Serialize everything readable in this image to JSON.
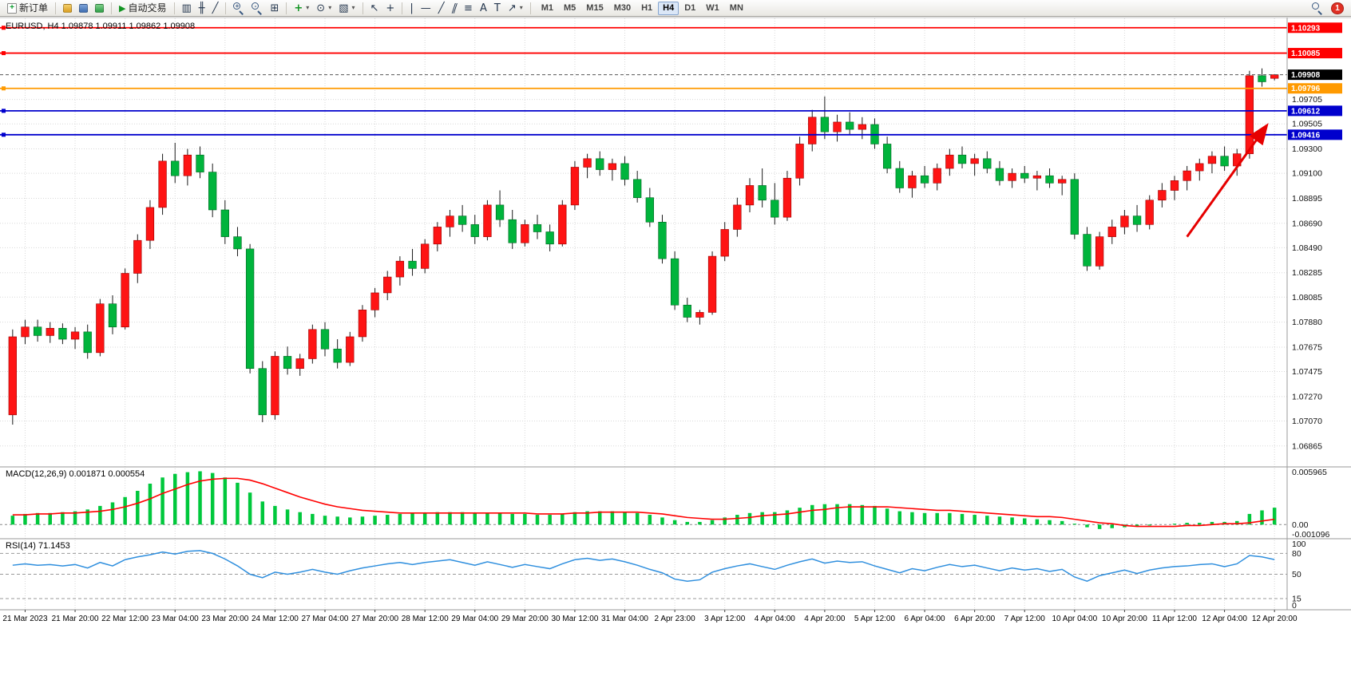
{
  "toolbar": {
    "new_order_label": "新订单",
    "auto_trading_label": "自动交易",
    "timeframes": [
      "M1",
      "M5",
      "M15",
      "M30",
      "H1",
      "H4",
      "D1",
      "W1",
      "MN"
    ],
    "active_timeframe": "H4",
    "notification_badge": "1"
  },
  "icons": {
    "new_order": "+",
    "auto_trading": "▶",
    "bar_chart": "▥",
    "candle_chart": "╫",
    "line_chart": "╱",
    "zoom_in": "+",
    "zoom_out": "-",
    "tile_windows": "⊞",
    "indicators": "+",
    "periods": "⊙",
    "templates": "▧",
    "caret": "▾",
    "cursor": "↖",
    "crosshair": "+",
    "vertical_line": "|",
    "horizontal_line": "—",
    "trendline": "╱",
    "channel": "∥",
    "fibonacci": "≡",
    "text": "A",
    "text_label": "T",
    "arrows": "↗"
  },
  "chart": {
    "title": "EURUSD, H4  1.09878 1.09911 1.09862 1.09908"
  },
  "chart_data": {
    "type": "candlestick",
    "symbol": "EURUSD",
    "timeframe": "H4",
    "ohlc": {
      "open": "1.09878",
      "high": "1.09911",
      "low": "1.09862",
      "close": "1.09908"
    },
    "colors": {
      "up": "#fe1414",
      "up_edge": "#990000",
      "down": "#00b43c",
      "down_edge": "#006622",
      "wick": "#1a1a1a",
      "macd_hist": "#00c83c",
      "macd_signal": "#ff0000",
      "rsi_line": "#2f8fde",
      "grid": "#d8d8d8"
    },
    "price_axis": {
      "min": 1.067,
      "max": 1.1037,
      "ticks": [
        "1.09705",
        "1.09505",
        "1.09300",
        "1.09100",
        "1.08895",
        "1.08690",
        "1.08490",
        "1.08285",
        "1.08085",
        "1.07880",
        "1.07675",
        "1.07475",
        "1.07270",
        "1.07070",
        "1.06865"
      ]
    },
    "current_price": {
      "label": "1.09908",
      "value": 1.09908,
      "tag_bg": "#000000",
      "line_color": "#555555"
    },
    "h_lines": [
      {
        "label": "1.10293",
        "value": 1.10293,
        "color": "#ff0000"
      },
      {
        "label": "1.10085",
        "value": 1.10085,
        "color": "#ff0000"
      },
      {
        "label": "1.09796",
        "value": 1.09796,
        "color": "#ff9a00"
      },
      {
        "label": "1.09612",
        "value": 1.09612,
        "color": "#0000cd"
      },
      {
        "label": "1.09416",
        "value": 1.09416,
        "color": "#0000cd"
      }
    ],
    "time_labels": [
      "21 Mar 2023",
      "21 Mar 20:00",
      "22 Mar 12:00",
      "23 Mar 04:00",
      "23 Mar 20:00",
      "24 Mar 12:00",
      "27 Mar 04:00",
      "27 Mar 20:00",
      "28 Mar 12:00",
      "29 Mar 04:00",
      "29 Mar 20:00",
      "30 Mar 12:00",
      "31 Mar 04:00",
      "2 Apr 23:00",
      "3 Apr 12:00",
      "4 Apr 04:00",
      "4 Apr 20:00",
      "5 Apr 12:00",
      "6 Apr 04:00",
      "6 Apr 20:00",
      "7 Apr 12:00",
      "10 Apr 04:00",
      "10 Apr 20:00",
      "11 Apr 12:00",
      "12 Apr 04:00",
      "12 Apr 20:00"
    ],
    "candles": [
      [
        1.0712,
        1.0782,
        1.0704,
        1.0776
      ],
      [
        1.0776,
        1.079,
        1.077,
        1.0784
      ],
      [
        1.0784,
        1.079,
        1.0772,
        1.0777
      ],
      [
        1.0777,
        1.0788,
        1.0771,
        1.0783
      ],
      [
        1.0783,
        1.0787,
        1.077,
        1.0774
      ],
      [
        1.0774,
        1.0784,
        1.0766,
        1.078
      ],
      [
        1.078,
        1.0786,
        1.0758,
        1.0763
      ],
      [
        1.0763,
        1.0807,
        1.076,
        1.0803
      ],
      [
        1.0803,
        1.081,
        1.0778,
        1.0784
      ],
      [
        1.0784,
        1.0832,
        1.0782,
        1.0828
      ],
      [
        1.0828,
        1.086,
        1.082,
        1.0855
      ],
      [
        1.0855,
        1.0888,
        1.0848,
        1.0882
      ],
      [
        1.0882,
        1.0926,
        1.0876,
        1.092
      ],
      [
        1.092,
        1.0935,
        1.0902,
        1.0908
      ],
      [
        1.0908,
        1.093,
        1.09,
        1.0925
      ],
      [
        1.0925,
        1.0932,
        1.0906,
        1.0911
      ],
      [
        1.0911,
        1.0918,
        1.0874,
        1.088
      ],
      [
        1.088,
        1.0888,
        1.0852,
        1.0858
      ],
      [
        1.0858,
        1.0866,
        1.0842,
        1.0848
      ],
      [
        1.0848,
        1.0852,
        1.0746,
        1.075
      ],
      [
        1.075,
        1.0756,
        1.0706,
        1.0712
      ],
      [
        1.0712,
        1.0764,
        1.0708,
        1.076
      ],
      [
        1.076,
        1.0768,
        1.0745,
        1.075
      ],
      [
        1.075,
        1.0762,
        1.0744,
        1.0758
      ],
      [
        1.0758,
        1.0786,
        1.0754,
        1.0782
      ],
      [
        1.0782,
        1.0788,
        1.076,
        1.0766
      ],
      [
        1.0766,
        1.0774,
        1.075,
        1.0755
      ],
      [
        1.0755,
        1.078,
        1.0752,
        1.0776
      ],
      [
        1.0776,
        1.0802,
        1.0772,
        1.0798
      ],
      [
        1.0798,
        1.0816,
        1.0792,
        1.0812
      ],
      [
        1.0812,
        1.083,
        1.0806,
        1.0825
      ],
      [
        1.0825,
        1.0842,
        1.0818,
        1.0838
      ],
      [
        1.0838,
        1.0848,
        1.0826,
        1.0832
      ],
      [
        1.0832,
        1.0856,
        1.0828,
        1.0852
      ],
      [
        1.0852,
        1.087,
        1.0846,
        1.0866
      ],
      [
        1.0866,
        1.088,
        1.0858,
        1.0875
      ],
      [
        1.0875,
        1.0884,
        1.0862,
        1.0868
      ],
      [
        1.0868,
        1.0876,
        1.0852,
        1.0858
      ],
      [
        1.0858,
        1.0888,
        1.0855,
        1.0884
      ],
      [
        1.0884,
        1.0896,
        1.0866,
        1.0872
      ],
      [
        1.0872,
        1.088,
        1.0848,
        1.0853
      ],
      [
        1.0853,
        1.0872,
        1.085,
        1.0868
      ],
      [
        1.0868,
        1.0876,
        1.0856,
        1.0862
      ],
      [
        1.0862,
        1.0868,
        1.0846,
        1.0852
      ],
      [
        1.0852,
        1.0888,
        1.085,
        1.0884
      ],
      [
        1.0884,
        1.092,
        1.088,
        1.0915
      ],
      [
        1.0915,
        1.0926,
        1.0906,
        1.0922
      ],
      [
        1.0922,
        1.0928,
        1.0908,
        1.0913
      ],
      [
        1.0913,
        1.0922,
        1.0904,
        1.0918
      ],
      [
        1.0918,
        1.0924,
        1.09,
        1.0905
      ],
      [
        1.0905,
        1.0912,
        1.0886,
        1.089
      ],
      [
        1.089,
        1.0898,
        1.0866,
        1.087
      ],
      [
        1.087,
        1.0876,
        1.0836,
        1.084
      ],
      [
        1.084,
        1.0846,
        1.0798,
        1.0802
      ],
      [
        1.0802,
        1.0808,
        1.0788,
        1.0792
      ],
      [
        1.0792,
        1.0798,
        1.0786,
        1.0796
      ],
      [
        1.0796,
        1.0846,
        1.0794,
        1.0842
      ],
      [
        1.0842,
        1.087,
        1.0838,
        1.0864
      ],
      [
        1.0864,
        1.089,
        1.0858,
        1.0884
      ],
      [
        1.0884,
        1.0906,
        1.0878,
        1.09
      ],
      [
        1.09,
        1.0914,
        1.0882,
        1.0888
      ],
      [
        1.0888,
        1.0902,
        1.0868,
        1.0874
      ],
      [
        1.0874,
        1.0912,
        1.0871,
        1.0906
      ],
      [
        1.0906,
        1.094,
        1.09,
        1.0934
      ],
      [
        1.0934,
        1.0962,
        1.0928,
        1.0956
      ],
      [
        1.0956,
        1.0973,
        1.0938,
        1.0944
      ],
      [
        1.0944,
        1.0958,
        1.0936,
        1.0952
      ],
      [
        1.0952,
        1.096,
        1.0942,
        1.0946
      ],
      [
        1.0946,
        1.0956,
        1.0938,
        1.095
      ],
      [
        1.095,
        1.0955,
        1.093,
        1.0934
      ],
      [
        1.0934,
        1.094,
        1.091,
        1.0914
      ],
      [
        1.0914,
        1.092,
        1.0894,
        1.0898
      ],
      [
        1.0898,
        1.0912,
        1.089,
        1.0908
      ],
      [
        1.0908,
        1.0916,
        1.0898,
        1.0902
      ],
      [
        1.0902,
        1.0918,
        1.0896,
        1.0914
      ],
      [
        1.0914,
        1.093,
        1.0908,
        1.0925
      ],
      [
        1.0925,
        1.0932,
        1.0914,
        1.0918
      ],
      [
        1.0918,
        1.0926,
        1.0908,
        1.0922
      ],
      [
        1.0922,
        1.0928,
        1.091,
        1.0914
      ],
      [
        1.0914,
        1.092,
        1.09,
        1.0904
      ],
      [
        1.0904,
        1.0914,
        1.0898,
        1.091
      ],
      [
        1.091,
        1.0916,
        1.0902,
        1.0906
      ],
      [
        1.0906,
        1.0912,
        1.0896,
        1.0908
      ],
      [
        1.0908,
        1.0914,
        1.0898,
        1.0902
      ],
      [
        1.0902,
        1.0908,
        1.0892,
        1.0905
      ],
      [
        1.0905,
        1.091,
        1.0856,
        1.086
      ],
      [
        1.086,
        1.0866,
        1.083,
        1.0834
      ],
      [
        1.0834,
        1.0862,
        1.0831,
        1.0858
      ],
      [
        1.0858,
        1.0872,
        1.0852,
        1.0866
      ],
      [
        1.0866,
        1.088,
        1.086,
        1.0875
      ],
      [
        1.0875,
        1.0884,
        1.0862,
        1.0868
      ],
      [
        1.0868,
        1.0892,
        1.0864,
        1.0888
      ],
      [
        1.0888,
        1.0902,
        1.0882,
        1.0896
      ],
      [
        1.0896,
        1.0908,
        1.0888,
        1.0904
      ],
      [
        1.0904,
        1.0916,
        1.0896,
        1.0912
      ],
      [
        1.0912,
        1.0922,
        1.0904,
        1.0918
      ],
      [
        1.0918,
        1.0928,
        1.091,
        1.0924
      ],
      [
        1.0924,
        1.0932,
        1.0912,
        1.0916
      ],
      [
        1.0916,
        1.093,
        1.0908,
        1.0926
      ],
      [
        1.0926,
        1.0994,
        1.0922,
        1.099
      ],
      [
        1.099,
        1.0996,
        1.0981,
        1.0985
      ],
      [
        1.09878,
        1.09911,
        1.09862,
        1.09908
      ]
    ],
    "macd": {
      "label": "MACD(12,26,9) 0.001871 0.000554",
      "scale": {
        "max_label": "0.005965",
        "zero_label": "0.00",
        "min_label": "-0.001096",
        "max": 0.0064,
        "min": -0.0015
      },
      "histogram": [
        0.001,
        0.0012,
        0.0013,
        0.0013,
        0.0014,
        0.0015,
        0.0017,
        0.0021,
        0.0025,
        0.0031,
        0.0038,
        0.0046,
        0.0053,
        0.0057,
        0.0059,
        0.006,
        0.0058,
        0.0053,
        0.0047,
        0.0036,
        0.0026,
        0.0021,
        0.0017,
        0.0014,
        0.0012,
        0.001,
        0.0009,
        0.0008,
        0.0009,
        0.001,
        0.0011,
        0.0012,
        0.0013,
        0.0013,
        0.0014,
        0.0014,
        0.0014,
        0.0013,
        0.0013,
        0.0013,
        0.0012,
        0.0012,
        0.0011,
        0.0011,
        0.0012,
        0.0014,
        0.0015,
        0.0015,
        0.0015,
        0.0014,
        0.0013,
        0.0011,
        0.0008,
        0.0005,
        0.0003,
        0.0003,
        0.0005,
        0.0008,
        0.0011,
        0.0013,
        0.0014,
        0.0014,
        0.0016,
        0.0019,
        0.0022,
        0.0023,
        0.0023,
        0.0023,
        0.0022,
        0.0021,
        0.0018,
        0.0015,
        0.0014,
        0.0013,
        0.0013,
        0.0013,
        0.0012,
        0.0011,
        0.001,
        0.0009,
        0.0008,
        0.0007,
        0.0006,
        0.0005,
        0.0004,
        0.0001,
        -0.0003,
        -0.0005,
        -0.0004,
        -0.0003,
        -0.0002,
        -0.0001,
        0.0,
        0.0001,
        0.0002,
        0.0002,
        0.0003,
        0.0003,
        0.0004,
        0.0012,
        0.0016,
        0.0019
      ],
      "signal": [
        0.0011,
        0.0011,
        0.0012,
        0.0012,
        0.0013,
        0.0013,
        0.0014,
        0.0015,
        0.0017,
        0.002,
        0.0024,
        0.0029,
        0.0035,
        0.004,
        0.0045,
        0.0049,
        0.0051,
        0.0052,
        0.0052,
        0.005,
        0.0046,
        0.0041,
        0.0036,
        0.0031,
        0.0027,
        0.0023,
        0.002,
        0.0018,
        0.0016,
        0.0015,
        0.0014,
        0.0013,
        0.0013,
        0.0013,
        0.0013,
        0.0013,
        0.0013,
        0.0013,
        0.0013,
        0.0013,
        0.0013,
        0.0013,
        0.0012,
        0.0012,
        0.0012,
        0.0013,
        0.0013,
        0.0014,
        0.0014,
        0.0014,
        0.0014,
        0.0013,
        0.0012,
        0.001,
        0.0008,
        0.0007,
        0.0006,
        0.0006,
        0.0007,
        0.0008,
        0.001,
        0.0011,
        0.0012,
        0.0014,
        0.0016,
        0.0017,
        0.0019,
        0.002,
        0.002,
        0.002,
        0.002,
        0.0019,
        0.0018,
        0.0017,
        0.0016,
        0.0016,
        0.0015,
        0.0014,
        0.0013,
        0.0012,
        0.0011,
        0.001,
        0.0009,
        0.0009,
        0.0008,
        0.0006,
        0.0004,
        0.0002,
        0.0001,
        -0.0001,
        -0.0002,
        -0.0002,
        -0.0002,
        -0.0002,
        -0.0001,
        -0.0001,
        0.0,
        0.0001,
        0.0001,
        0.0002,
        0.0004,
        0.0006
      ]
    },
    "rsi": {
      "label": "RSI(14) 71.1453",
      "levels": [
        80,
        50,
        15
      ],
      "scale_labels": [
        "100",
        "80",
        "50",
        "15",
        "0"
      ],
      "values": [
        63,
        65,
        63,
        64,
        62,
        64,
        59,
        67,
        62,
        71,
        75,
        78,
        82,
        79,
        83,
        84,
        80,
        72,
        62,
        50,
        45,
        53,
        50,
        53,
        57,
        53,
        50,
        55,
        59,
        62,
        65,
        67,
        64,
        67,
        69,
        71,
        67,
        63,
        68,
        64,
        60,
        64,
        61,
        58,
        65,
        71,
        73,
        70,
        72,
        68,
        63,
        57,
        52,
        43,
        40,
        42,
        53,
        58,
        62,
        65,
        61,
        57,
        63,
        68,
        72,
        66,
        69,
        67,
        68,
        62,
        57,
        52,
        58,
        55,
        60,
        64,
        61,
        63,
        59,
        55,
        59,
        56,
        58,
        54,
        57,
        46,
        40,
        48,
        52,
        56,
        51,
        56,
        59,
        61,
        62,
        64,
        65,
        61,
        65,
        77,
        75,
        71.1
      ]
    },
    "annotation_arrow": {
      "color": "#e60000",
      "from_index": 94,
      "from_price": 1.0858,
      "to_index": 100.3,
      "to_price": 1.0948
    }
  }
}
